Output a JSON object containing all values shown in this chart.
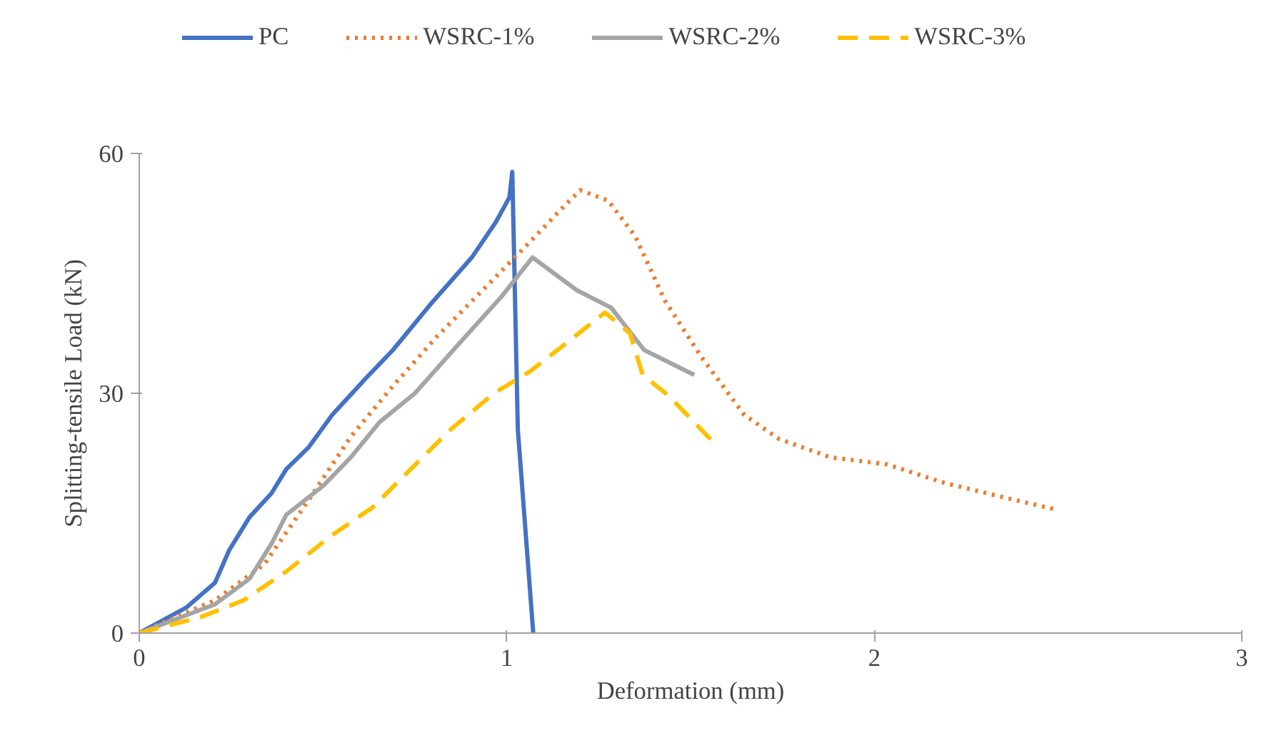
{
  "chart_data": {
    "type": "line",
    "xlabel": "Deformation (mm)",
    "ylabel": "Splitting-tensile Load (kN)",
    "xlim": [
      0,
      3
    ],
    "ylim": [
      0,
      60
    ],
    "xticks": [
      0,
      1,
      2,
      3
    ],
    "yticks": [
      0,
      30,
      60
    ],
    "grid": false,
    "legend": "top",
    "marker": "none",
    "series": [
      {
        "name": "PC",
        "color": "#4472c4",
        "line_style": "solid",
        "x": [
          0,
          0.128,
          0.206,
          0.245,
          0.3,
          0.36,
          0.4,
          0.46,
          0.525,
          0.615,
          0.69,
          0.79,
          0.905,
          0.97,
          1.007,
          1.015,
          1.03,
          1.072
        ],
        "values": [
          0,
          3.2,
          6.3,
          10.4,
          14.5,
          17.5,
          20.5,
          23.2,
          27.3,
          31.8,
          35.4,
          41,
          47,
          51.4,
          54.5,
          57.7,
          25.5,
          0
        ]
      },
      {
        "name": "WSRC-1%",
        "color": "#ed7d31",
        "line_style": "dotted",
        "x": [
          0,
          0.206,
          0.34,
          0.46,
          0.576,
          0.69,
          0.81,
          0.945,
          1.06,
          1.16,
          1.2,
          1.276,
          1.35,
          1.43,
          1.53,
          1.646,
          1.74,
          1.88,
          2.035,
          2.19,
          2.35,
          2.49
        ],
        "values": [
          0,
          4.1,
          8.6,
          16.6,
          24.6,
          30.9,
          37.1,
          43.4,
          48.8,
          53.6,
          55.4,
          54.1,
          49.6,
          41.6,
          34.5,
          27.3,
          24.3,
          22,
          21.1,
          18.8,
          17,
          15.5
        ]
      },
      {
        "name": "WSRC-2%",
        "color": "#a5a5a5",
        "line_style": "solid",
        "x": [
          0,
          0.206,
          0.3,
          0.36,
          0.4,
          0.5,
          0.576,
          0.654,
          0.75,
          0.87,
          0.984,
          1.07,
          1.19,
          1.284,
          1.374,
          1.51
        ],
        "values": [
          0,
          3.6,
          6.8,
          11.2,
          14.8,
          18.4,
          22,
          26.4,
          30,
          36.2,
          42,
          47,
          42.9,
          40.7,
          35.4,
          32.3
        ]
      },
      {
        "name": "WSRC-3%",
        "color": "#ffc000",
        "line_style": "dashed",
        "x": [
          0,
          0.167,
          0.284,
          0.4,
          0.52,
          0.634,
          0.712,
          0.848,
          0.965,
          1.062,
          1.16,
          1.267,
          1.335,
          1.37,
          1.44,
          1.568
        ],
        "values": [
          0,
          2,
          4.1,
          7.7,
          12.1,
          15.7,
          19.3,
          25.5,
          30,
          32.7,
          36.2,
          40.1,
          37.5,
          32.3,
          29.7,
          23.6
        ]
      }
    ]
  }
}
